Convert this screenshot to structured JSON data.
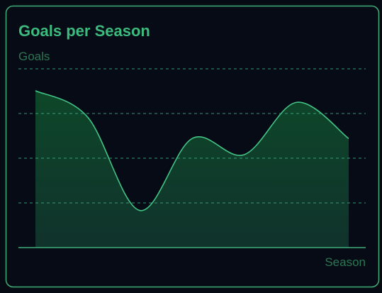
{
  "chart_data": {
    "type": "area",
    "title": "Goals per Season",
    "y_label": "Goals",
    "x_label": "Season",
    "categories": [
      null,
      null,
      null,
      null,
      null,
      null,
      null
    ],
    "values": [
      35.1,
      29.2,
      8.3,
      24.4,
      20.8,
      32.5,
      24.4
    ],
    "color": "#43c486",
    "ylim": [
      0,
      40
    ],
    "yticks": [
      10,
      20,
      30,
      40
    ],
    "grid": true
  }
}
